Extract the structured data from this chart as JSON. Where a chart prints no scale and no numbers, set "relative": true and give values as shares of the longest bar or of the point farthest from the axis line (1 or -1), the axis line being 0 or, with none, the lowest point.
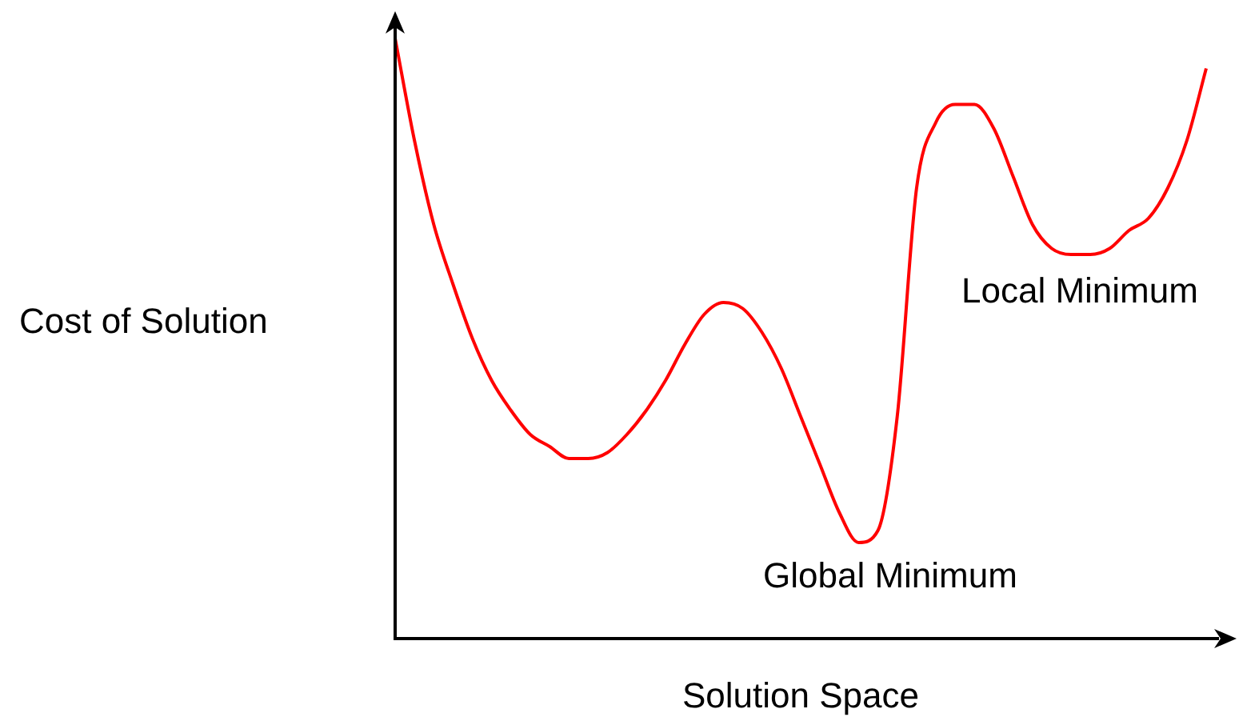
{
  "chart_data": {
    "type": "line",
    "relative": true,
    "xlabel": "Solution Space",
    "ylabel": "Cost of Solution",
    "annotations": [
      "Global Minimum",
      "Local Minimum"
    ],
    "categories": [
      null,
      null,
      null,
      null,
      null,
      null,
      null,
      null,
      null,
      null,
      null,
      null,
      null,
      null,
      null,
      null,
      null,
      null,
      null,
      null,
      null,
      null,
      null,
      null,
      null,
      null,
      null,
      null,
      null,
      null,
      null,
      null,
      null,
      null,
      null,
      null,
      null,
      null,
      null,
      null,
      null,
      null,
      null
    ],
    "series": [
      {
        "color": "#ff0000",
        "values": [
          1,
          0.83,
          0.69,
          0.59,
          0.5,
          0.43,
          0.38,
          0.34,
          0.32,
          0.3,
          0.3,
          0.31,
          0.34,
          0.38,
          0.43,
          0.49,
          0.54,
          0.56,
          0.55,
          0.51,
          0.45,
          0.37,
          0.29,
          0.21,
          0.16,
          0.18,
          0.37,
          0.75,
          0.86,
          0.89,
          0.89,
          0.85,
          0.77,
          0.69,
          0.65,
          0.64,
          0.64,
          0.65,
          0.68,
          0.7,
          0.75,
          0.83,
          0.95
        ]
      }
    ],
    "legend": false,
    "marker": "none",
    "line_style": "solid"
  }
}
